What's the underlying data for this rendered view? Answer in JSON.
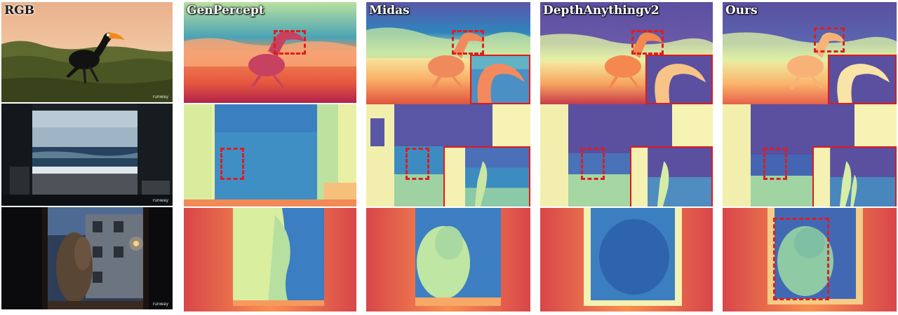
{
  "columns": [
    {
      "id": "rgb",
      "label": "RGB"
    },
    {
      "id": "genpercept",
      "label": "GenPercept"
    },
    {
      "id": "midas",
      "label": "Midas"
    },
    {
      "id": "depthanythingv2",
      "label": "DepthAnythingv2"
    },
    {
      "id": "ours",
      "label": "Ours"
    }
  ],
  "rows": [
    {
      "id": "bird",
      "subject": "toucan-like bird in grassland at sunset"
    },
    {
      "id": "window-sea",
      "subject": "room interior looking out at the sea"
    },
    {
      "id": "night-window",
      "subject": "creature by a night street seen through a window"
    }
  ],
  "watermark": "runway",
  "colors": {
    "highlight_red": "#dc1e1e",
    "depth_near": "#a3204a",
    "depth_mid": "#f3f2a6",
    "depth_far": "#5b4fa0"
  }
}
